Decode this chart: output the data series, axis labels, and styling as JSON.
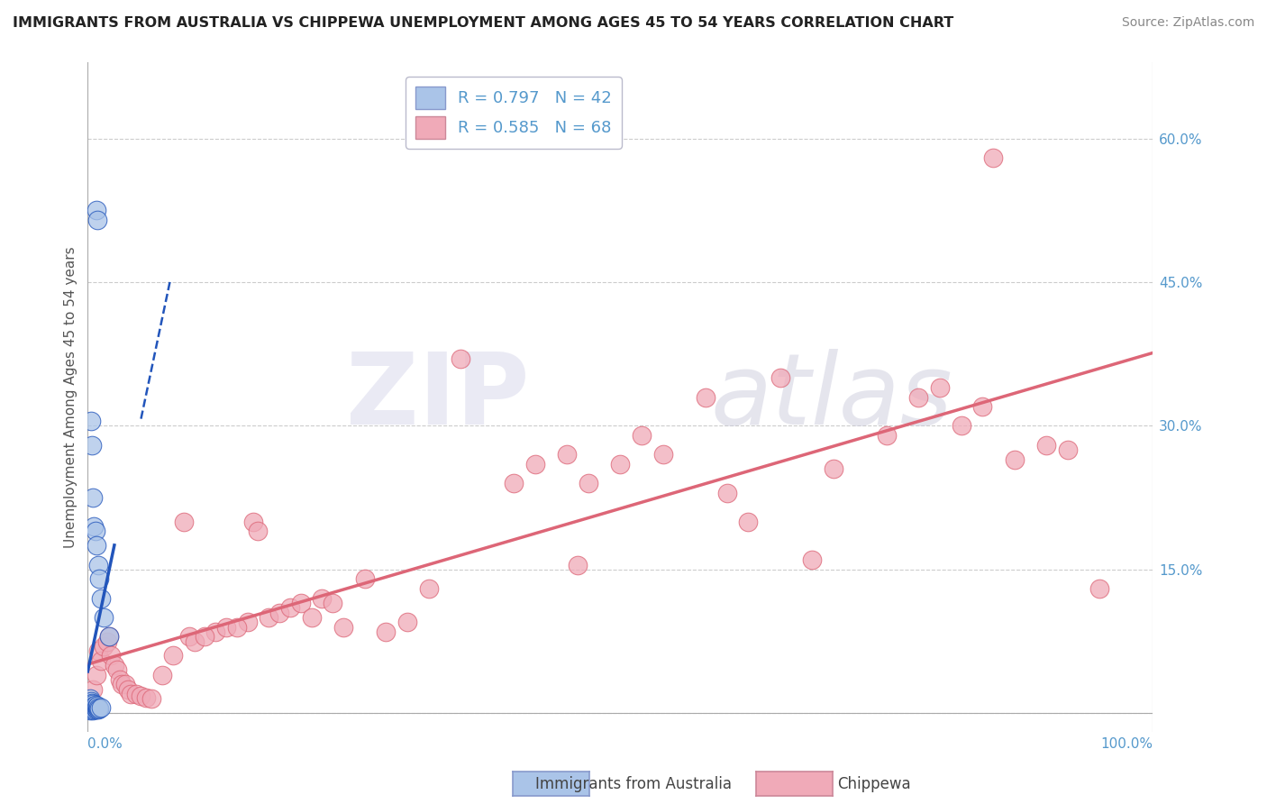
{
  "title": "IMMIGRANTS FROM AUSTRALIA VS CHIPPEWA UNEMPLOYMENT AMONG AGES 45 TO 54 YEARS CORRELATION CHART",
  "source": "Source: ZipAtlas.com",
  "ylabel": "Unemployment Among Ages 45 to 54 years",
  "xlim": [
    0,
    1.0
  ],
  "ylim": [
    -0.02,
    0.68
  ],
  "yticks": [
    0.0,
    0.15,
    0.3,
    0.45,
    0.6
  ],
  "ytick_labels": [
    "",
    "15.0%",
    "30.0%",
    "45.0%",
    "60.0%"
  ],
  "xtick_left": "0.0%",
  "xtick_right": "100.0%",
  "legend_label1": "Immigrants from Australia",
  "legend_label2": "Chippewa",
  "R1": 0.797,
  "N1": 42,
  "R2": 0.585,
  "N2": 68,
  "blue_scatter_color": "#aac4e8",
  "pink_scatter_color": "#f0aab8",
  "trend_blue_color": "#2255bb",
  "trend_pink_color": "#dd6677",
  "background_color": "#ffffff",
  "grid_color": "#cccccc",
  "tick_color": "#5599cc",
  "watermark_zip": "ZIP",
  "watermark_atlas": "atlas"
}
